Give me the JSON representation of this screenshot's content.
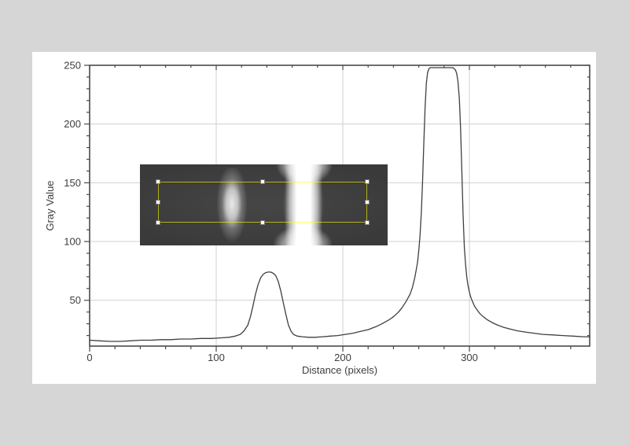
{
  "page": {
    "background_color": "#d6d6d6",
    "panel_background": "#ffffff"
  },
  "chart_data": {
    "type": "line",
    "title": "",
    "xlabel": "Distance (pixels)",
    "ylabel": "Gray Value",
    "xlim": [
      0,
      395
    ],
    "ylim": [
      11,
      250
    ],
    "x_major_ticks": [
      0,
      100,
      200,
      300
    ],
    "x_tick_labels": [
      "0",
      "100",
      "200",
      "300"
    ],
    "x_minor_step": 20,
    "y_major_ticks": [
      50,
      100,
      150,
      200,
      250
    ],
    "y_tick_labels": [
      "50",
      "100",
      "150",
      "200",
      "250"
    ],
    "y_minor_step": 10,
    "grid": true,
    "legend": "none",
    "line_color": "#3f3f3f",
    "frame_color": "#4a4a4a",
    "grid_color": "#d0d0d0",
    "label_color": "#3d3d3d",
    "points": [
      [
        0,
        16
      ],
      [
        8,
        15.5
      ],
      [
        16,
        15
      ],
      [
        24,
        15
      ],
      [
        32,
        15.5
      ],
      [
        40,
        16
      ],
      [
        48,
        16
      ],
      [
        56,
        16.5
      ],
      [
        64,
        16.5
      ],
      [
        72,
        17
      ],
      [
        80,
        17
      ],
      [
        88,
        17.5
      ],
      [
        96,
        17.5
      ],
      [
        104,
        18
      ],
      [
        110,
        18.5
      ],
      [
        115,
        19.5
      ],
      [
        119,
        21
      ],
      [
        122,
        24
      ],
      [
        125,
        29
      ],
      [
        127,
        36
      ],
      [
        129,
        45
      ],
      [
        131,
        55
      ],
      [
        133,
        63
      ],
      [
        135,
        69
      ],
      [
        137,
        72
      ],
      [
        139,
        73.5
      ],
      [
        141,
        74
      ],
      [
        143,
        74
      ],
      [
        145,
        73
      ],
      [
        147,
        71
      ],
      [
        149,
        66
      ],
      [
        151,
        58
      ],
      [
        153,
        48
      ],
      [
        155,
        38
      ],
      [
        157,
        29
      ],
      [
        159,
        24
      ],
      [
        161,
        21
      ],
      [
        164,
        19.5
      ],
      [
        168,
        19
      ],
      [
        173,
        18.5
      ],
      [
        178,
        18.5
      ],
      [
        184,
        19
      ],
      [
        190,
        19.5
      ],
      [
        196,
        20
      ],
      [
        202,
        21
      ],
      [
        208,
        22
      ],
      [
        214,
        23.5
      ],
      [
        220,
        25
      ],
      [
        226,
        27.5
      ],
      [
        231,
        30
      ],
      [
        236,
        33
      ],
      [
        240,
        36
      ],
      [
        244,
        40
      ],
      [
        247,
        44
      ],
      [
        250,
        49
      ],
      [
        253,
        55
      ],
      [
        255,
        61
      ],
      [
        257,
        70
      ],
      [
        259,
        82
      ],
      [
        260,
        92
      ],
      [
        261,
        105
      ],
      [
        262,
        125
      ],
      [
        263,
        152
      ],
      [
        264,
        185
      ],
      [
        265,
        215
      ],
      [
        266,
        235
      ],
      [
        267,
        244
      ],
      [
        268,
        247
      ],
      [
        269,
        248
      ],
      [
        272,
        248
      ],
      [
        276,
        248
      ],
      [
        280,
        248
      ],
      [
        284,
        248
      ],
      [
        287,
        248
      ],
      [
        289,
        246
      ],
      [
        290,
        243
      ],
      [
        291,
        236
      ],
      [
        292,
        222
      ],
      [
        293,
        196
      ],
      [
        294,
        160
      ],
      [
        295,
        122
      ],
      [
        296,
        95
      ],
      [
        297,
        80
      ],
      [
        298,
        69
      ],
      [
        299,
        62
      ],
      [
        300,
        57
      ],
      [
        301,
        53
      ],
      [
        302,
        50
      ],
      [
        304,
        45
      ],
      [
        306,
        42
      ],
      [
        308,
        39
      ],
      [
        311,
        36
      ],
      [
        314,
        33.5
      ],
      [
        318,
        31
      ],
      [
        322,
        29
      ],
      [
        327,
        27
      ],
      [
        332,
        25.5
      ],
      [
        338,
        24
      ],
      [
        344,
        23
      ],
      [
        351,
        22
      ],
      [
        358,
        21
      ],
      [
        366,
        20.5
      ],
      [
        374,
        20
      ],
      [
        382,
        19.5
      ],
      [
        390,
        19
      ],
      [
        395,
        19
      ]
    ]
  },
  "inset": {
    "roi_color": "#ffff00",
    "handle_color": "#ffffff",
    "image_background": "#3a3a3a"
  }
}
